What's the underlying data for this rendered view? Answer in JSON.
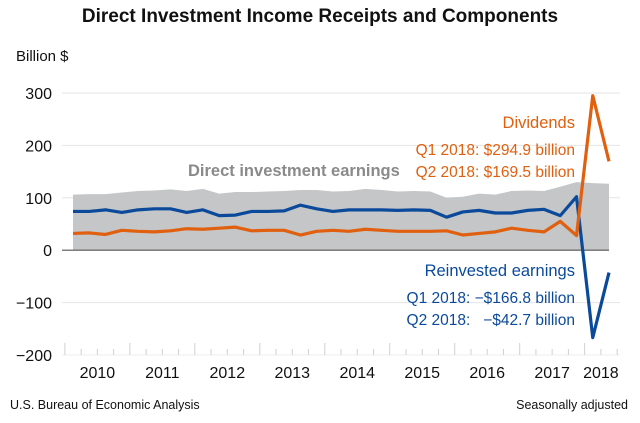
{
  "title": "Direct Investment Income Receipts and Components",
  "source": "U.S. Bureau of Economic Analysis",
  "note": "Seasonally adjusted",
  "chart_data": {
    "type": "line",
    "title": "Direct Investment Income Receipts and Components",
    "ylabel": "Billion $",
    "xlabel": "",
    "ylim": [
      -200,
      300
    ],
    "yticks": [
      -200,
      -100,
      0,
      100,
      200,
      300
    ],
    "ytick_labels": [
      "-200",
      "-100",
      "0",
      "100",
      "200",
      "300"
    ],
    "xtick_labels": [
      "2010",
      "2011",
      "2012",
      "2013",
      "2014",
      "2015",
      "2016",
      "2017",
      "2018"
    ],
    "grid": true,
    "x": [
      "2010Q1",
      "2010Q2",
      "2010Q3",
      "2010Q4",
      "2011Q1",
      "2011Q2",
      "2011Q3",
      "2011Q4",
      "2012Q1",
      "2012Q2",
      "2012Q3",
      "2012Q4",
      "2013Q1",
      "2013Q2",
      "2013Q3",
      "2013Q4",
      "2014Q1",
      "2014Q2",
      "2014Q3",
      "2014Q4",
      "2015Q1",
      "2015Q2",
      "2015Q3",
      "2015Q4",
      "2016Q1",
      "2016Q2",
      "2016Q3",
      "2016Q4",
      "2017Q1",
      "2017Q2",
      "2017Q3",
      "2017Q4",
      "2018Q1",
      "2018Q2"
    ],
    "series": [
      {
        "name": "Direct investment earnings",
        "kind": "area",
        "color": "#c4c6c7",
        "values": [
          106,
          107,
          107,
          110,
          113,
          114,
          116,
          113,
          117,
          108,
          111,
          111,
          112,
          113,
          115,
          115,
          112,
          113,
          117,
          115,
          112,
          113,
          112,
          100,
          102,
          108,
          106,
          113,
          114,
          113,
          121,
          130,
          128.1,
          126.8
        ]
      },
      {
        "name": "Reinvested earnings",
        "kind": "line",
        "color": "#0b4a9b",
        "values": [
          74,
          74,
          77,
          72,
          77,
          79,
          79,
          72,
          77,
          66,
          67,
          74,
          74,
          75,
          86,
          79,
          74,
          77,
          77,
          77,
          76,
          77,
          76,
          63,
          73,
          76,
          71,
          71,
          76,
          78,
          66,
          102,
          -166.8,
          -42.7
        ]
      },
      {
        "name": "Dividends",
        "kind": "line",
        "color": "#e0600f",
        "values": [
          32,
          33,
          30,
          38,
          36,
          35,
          37,
          41,
          40,
          42,
          44,
          37,
          38,
          38,
          29,
          36,
          38,
          36,
          40,
          38,
          36,
          36,
          36,
          37,
          29,
          32,
          35,
          42,
          38,
          35,
          55,
          28,
          294.9,
          169.5
        ]
      }
    ],
    "annotations": {
      "earnings": "Direct investment earnings",
      "dividends_title": "Dividends",
      "dividends_q1": "Q1 2018: $294.9 billion",
      "dividends_q2": "Q2 2018: $169.5 billion",
      "reinvested_title": "Reinvested earnings",
      "reinvested_q1": "Q1 2018: −$166.8 billion",
      "reinvested_q2": "Q2 2018:   −$42.7 billion"
    }
  }
}
